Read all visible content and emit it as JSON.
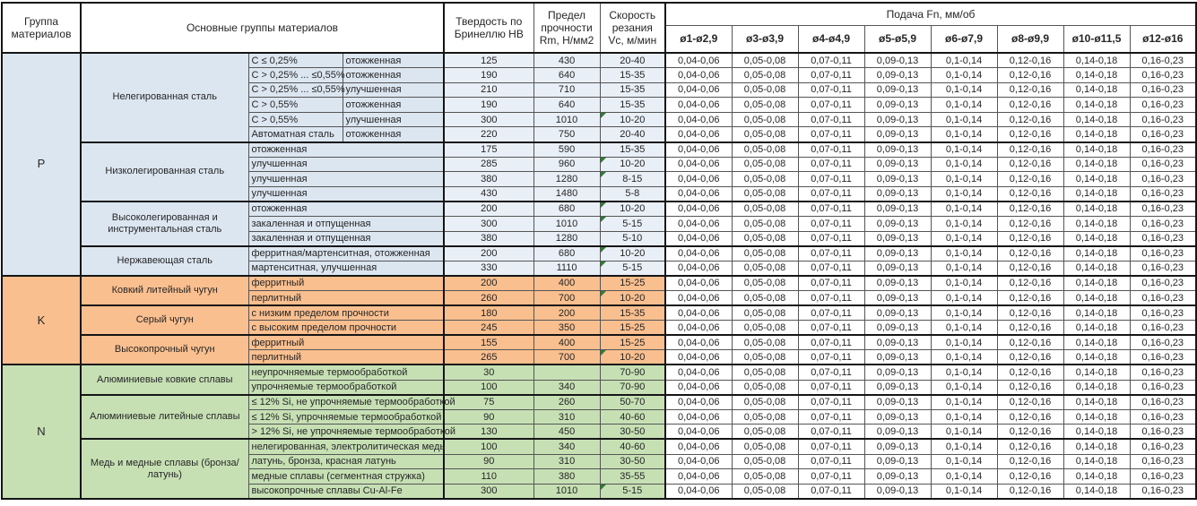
{
  "header": {
    "col_group": "Группа материалов",
    "col_main_groups": "Основные группы материалов",
    "col_hardness": "Твердость по Бринеллю HB",
    "col_strength": "Предел прочности Rm, Н/мм2",
    "col_speed": "Скорость резания Vc, м/мин",
    "feed_title": "Подача Fn, мм/об",
    "feed_cols": [
      "ø1-ø2,9",
      "ø3-ø3,9",
      "ø4-ø4,9",
      "ø5-ø5,9",
      "ø6-ø7,9",
      "ø8-ø9,9",
      "ø10-ø11,5",
      "ø12-ø16"
    ]
  },
  "feed_values": [
    "0,04-0,06",
    "0,05-0,08",
    "0,07-0,11",
    "0,09-0,13",
    "0,1-0,14",
    "0,12-0,16",
    "0,14-0,18",
    "0,16-0,23"
  ],
  "colors": {
    "p": "#dce6f1",
    "p_data": "#e9eff7",
    "k": "#fabf8f",
    "n": "#c6e0b4",
    "flag": "#2e7d32"
  },
  "groups": [
    {
      "code": "P",
      "color": "#dce6f1",
      "data_color": "#e9eff7",
      "subgroups": [
        {
          "name": "Нелегированная сталь",
          "rows": [
            {
              "spec1": "C ≤ 0,25%",
              "spec2": "отожженная",
              "hb": "125",
              "rm": "430",
              "vc": "20-40",
              "flag": false
            },
            {
              "spec1": "C > 0,25% ... ≤0,55%",
              "spec2": "отожженная",
              "hb": "190",
              "rm": "640",
              "vc": "15-35",
              "flag": false
            },
            {
              "spec1": "C > 0,25% ... ≤0,55%",
              "spec2": "улучшенная",
              "hb": "210",
              "rm": "710",
              "vc": "15-35",
              "flag": false
            },
            {
              "spec1": "C > 0,55%",
              "spec2": "отожженная",
              "hb": "190",
              "rm": "640",
              "vc": "15-35",
              "flag": false
            },
            {
              "spec1": "C > 0,55%",
              "spec2": "улучшенная",
              "hb": "300",
              "rm": "1010",
              "vc": "10-20",
              "flag": true
            },
            {
              "spec1": "Автоматная сталь",
              "spec2": "отожженная",
              "hb": "220",
              "rm": "750",
              "vc": "20-40",
              "flag": false
            }
          ]
        },
        {
          "name": "Низколегированная сталь",
          "rows": [
            {
              "spec1": "отожженная",
              "hb": "175",
              "rm": "590",
              "vc": "15-35",
              "flag": false
            },
            {
              "spec1": "улучшенная",
              "hb": "285",
              "rm": "960",
              "vc": "10-20",
              "flag": true
            },
            {
              "spec1": "улучшенная",
              "hb": "380",
              "rm": "1280",
              "vc": "8-15",
              "flag": true
            },
            {
              "spec1": "улучшенная",
              "hb": "430",
              "rm": "1480",
              "vc": "5-8",
              "flag": false
            }
          ]
        },
        {
          "name": "Высоколегированная и инструментальная сталь",
          "rows": [
            {
              "spec1": "отожженная",
              "hb": "200",
              "rm": "680",
              "vc": "10-20",
              "flag": true
            },
            {
              "spec1": "закаленная и отпущенная",
              "hb": "300",
              "rm": "1010",
              "vc": "5-15",
              "flag": true
            },
            {
              "spec1": "закаленная и отпущенная",
              "hb": "380",
              "rm": "1280",
              "vc": "5-10",
              "flag": false
            }
          ]
        },
        {
          "name": "Нержавеющая сталь",
          "rows": [
            {
              "spec1": "ферритная/мартенситная, отожженная",
              "hb": "200",
              "rm": "680",
              "vc": "10-20",
              "flag": true
            },
            {
              "spec1": "мартенситная, улучшенная",
              "hb": "330",
              "rm": "1110",
              "vc": "5-15",
              "flag": true
            }
          ]
        }
      ]
    },
    {
      "code": "K",
      "color": "#fabf8f",
      "data_color": "#fabf8f",
      "subgroups": [
        {
          "name": "Ковкий литейный чугун",
          "rows": [
            {
              "spec1": "ферритный",
              "hb": "200",
              "rm": "400",
              "vc": "15-25",
              "flag": false
            },
            {
              "spec1": "перлитный",
              "hb": "260",
              "rm": "700",
              "vc": "10-20",
              "flag": true
            }
          ]
        },
        {
          "name": "Серый чугун",
          "rows": [
            {
              "spec1": "с низким пределом прочности",
              "hb": "180",
              "rm": "200",
              "vc": "15-35",
              "flag": false
            },
            {
              "spec1": "с высоким пределом прочности",
              "hb": "245",
              "rm": "350",
              "vc": "15-25",
              "flag": false
            }
          ]
        },
        {
          "name": "Высокопрочный чугун",
          "rows": [
            {
              "spec1": "ферритный",
              "hb": "155",
              "rm": "400",
              "vc": "15-25",
              "flag": false
            },
            {
              "spec1": "перлитный",
              "hb": "265",
              "rm": "700",
              "vc": "10-20",
              "flag": true
            }
          ]
        }
      ]
    },
    {
      "code": "N",
      "color": "#c6e0b4",
      "data_color": "#c6e0b4",
      "subgroups": [
        {
          "name": "Алюминиевые ковкие сплавы",
          "rows": [
            {
              "spec1": "неупрочняемые термообработкой",
              "hb": "30",
              "rm": "",
              "vc": "70-90",
              "flag": false
            },
            {
              "spec1": "упрочняемые термообработкой",
              "hb": "100",
              "rm": "340",
              "vc": "70-90",
              "flag": false
            }
          ]
        },
        {
          "name": "Алюминиевые литейные сплавы",
          "rows": [
            {
              "spec1": "≤ 12% Si, не упрочняемые термообработкой",
              "hb": "75",
              "rm": "260",
              "vc": "50-70",
              "flag": false
            },
            {
              "spec1": "≤ 12% Si, упрочняемые термообработкой",
              "hb": "90",
              "rm": "310",
              "vc": "40-60",
              "flag": false
            },
            {
              "spec1": "> 12% Si, не упрочняемые термообработкой",
              "hb": "130",
              "rm": "450",
              "vc": "30-50",
              "flag": false
            }
          ]
        },
        {
          "name": "Медь и медные сплавы (бронза/латунь)",
          "rows": [
            {
              "spec1": "нелегированная, электролитическая медь",
              "hb": "100",
              "rm": "340",
              "vc": "40-60",
              "flag": false
            },
            {
              "spec1": "латунь, бронза, красная латунь",
              "hb": "90",
              "rm": "310",
              "vc": "30-50",
              "flag": false
            },
            {
              "spec1": "медные сплавы (сегментная стружка)",
              "hb": "110",
              "rm": "380",
              "vc": "35-55",
              "flag": false
            },
            {
              "spec1": "высокопрочные сплавы Cu-Al-Fe",
              "hb": "300",
              "rm": "1010",
              "vc": "5-15",
              "flag": true
            }
          ]
        }
      ]
    }
  ]
}
